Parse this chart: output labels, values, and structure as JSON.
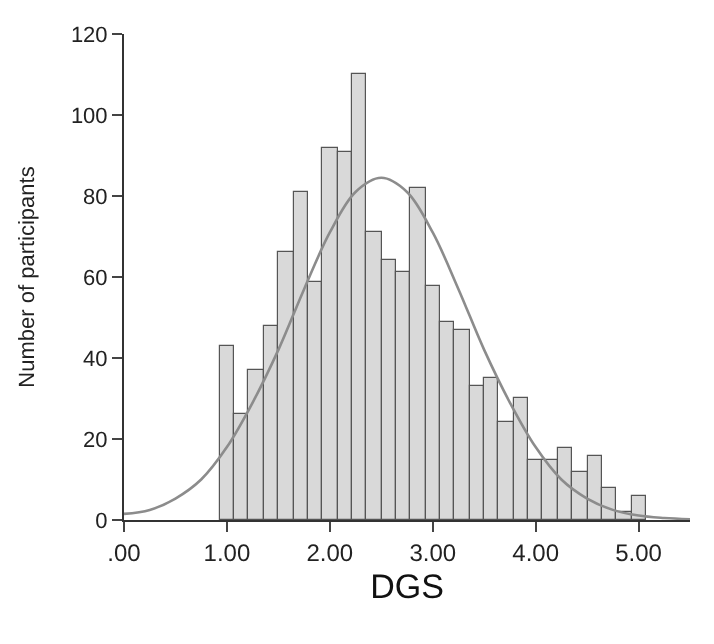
{
  "chart_data": {
    "type": "histogram",
    "xlabel": "DGS",
    "ylabel": "Number of participants",
    "bins": [
      0.929,
      1.071,
      1.214,
      1.357,
      1.5,
      1.643,
      1.786,
      1.929,
      2.071,
      2.214,
      2.357,
      2.5,
      2.643,
      2.786,
      2.929,
      3.071,
      3.214,
      3.357,
      3.5,
      3.643,
      3.786,
      3.929,
      4.071,
      4.214,
      4.357,
      4.5,
      4.643,
      4.786,
      4.929,
      5.071
    ],
    "values": [
      43,
      26,
      37,
      48,
      66,
      81,
      59,
      92,
      91,
      110,
      71,
      64,
      61,
      82,
      58,
      49,
      47,
      33,
      35,
      24,
      30,
      15,
      15,
      18,
      12,
      16,
      8,
      2,
      6
    ],
    "color": "#d9d9d9",
    "series": [
      {
        "type": "line",
        "color": "#8c8c8c",
        "x": [
          0,
          0.25,
          0.5,
          0.75,
          1.0,
          1.25,
          1.5,
          1.75,
          2.0,
          2.25,
          2.5,
          2.75,
          3.0,
          3.25,
          3.5,
          3.75,
          4.0,
          4.25,
          4.5,
          4.75,
          5.0,
          5.25,
          5.5
        ],
        "values": [
          1.5,
          2.5,
          5.3,
          10,
          18,
          29,
          42,
          57,
          71,
          81,
          84.5,
          81,
          71,
          57,
          42,
          29,
          18,
          10,
          5.3,
          2.5,
          1.1,
          0.5,
          0.2
        ]
      }
    ],
    "xlim": [
      0,
      5.5
    ],
    "xticks": [
      {
        "value": 0,
        "label": ".00"
      },
      {
        "value": 1,
        "label": "1.00"
      },
      {
        "value": 2,
        "label": "2.00"
      },
      {
        "value": 3,
        "label": "3.00"
      },
      {
        "value": 4,
        "label": "4.00"
      },
      {
        "value": 5,
        "label": "5.00"
      }
    ],
    "ylim": [
      0,
      120
    ],
    "yticks": [
      0,
      20,
      40,
      60,
      80,
      100,
      120
    ]
  }
}
